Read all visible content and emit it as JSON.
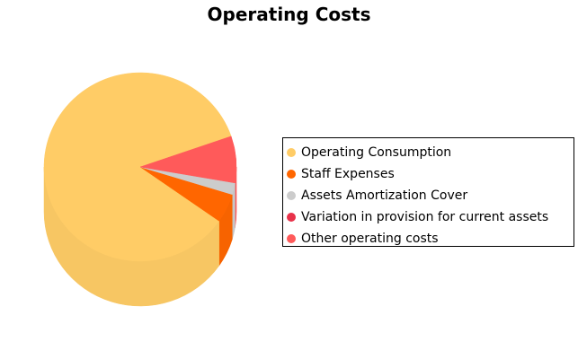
{
  "chart_data": {
    "type": "pie",
    "title": "Operating Costs",
    "legend_position": "right",
    "style": "3d-cylinder",
    "slices": [
      {
        "label": "Operating Consumption",
        "value": 85.0,
        "color": "#FFCC66"
      },
      {
        "label": "Staff Expenses",
        "value": 5.0,
        "color": "#FF6600"
      },
      {
        "label": "Assets Amortization Cover",
        "value": 2.0,
        "color": "#CCCCCC"
      },
      {
        "label": "Variation in provision for current assets",
        "value": 0.0,
        "color": "#E8324A"
      },
      {
        "label": "Other operating costs",
        "value": 8.0,
        "color": "#FF5A5A"
      }
    ]
  }
}
